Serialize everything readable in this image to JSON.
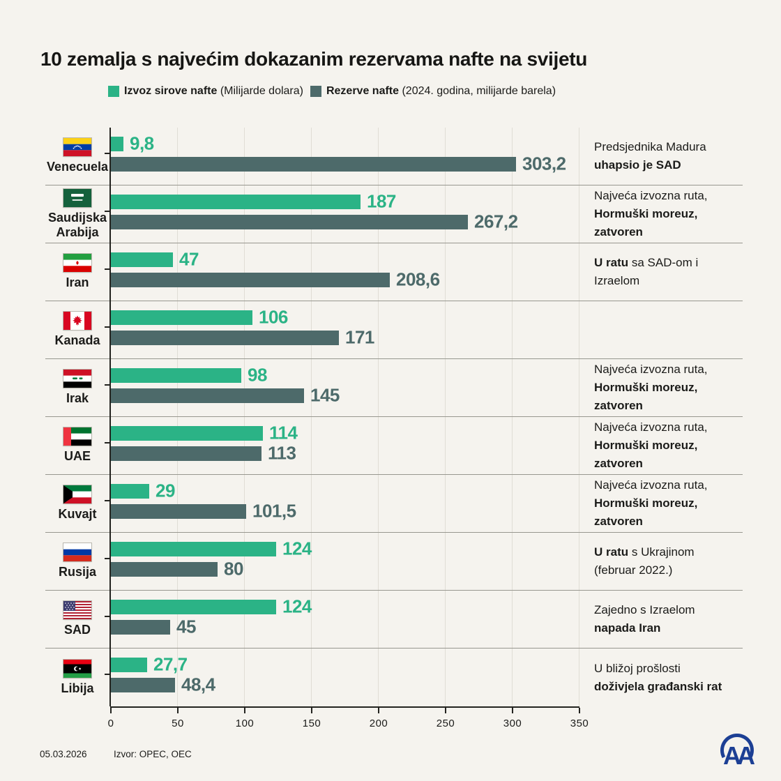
{
  "header": {
    "title": "10 zemalja s najvećim dokazanim rezervama nafte na svijetu"
  },
  "legend": {
    "items": [
      {
        "label_bold": "Izvoz sirove nafte",
        "label_rest": " (Milijarde dolara)",
        "color": "#2bb386"
      },
      {
        "label_bold": "Rezerve nafte",
        "label_rest": " (2024. godina, milijarde barela)",
        "color": "#4d6a6a"
      }
    ]
  },
  "chart_data": {
    "type": "bar",
    "orientation": "horizontal",
    "title": "10 zemalja s najvećim dokazanim rezervama nafte na svijetu",
    "categories": [
      "Venecuela",
      "Saudijska Arabija",
      "Iran",
      "Kanada",
      "Irak",
      "UAE",
      "Kuvajt",
      "Rusija",
      "SAD",
      "Libija"
    ],
    "series": [
      {
        "name": "Izvoz sirove nafte (Milijarde dolara)",
        "color": "#2bb386",
        "values": [
          9.8,
          187,
          47,
          106,
          98,
          114,
          29,
          124,
          124,
          27.7
        ],
        "labels": [
          "9,8",
          "187",
          "47",
          "106",
          "98",
          "114",
          "29",
          "124",
          "124",
          "27,7"
        ]
      },
      {
        "name": "Rezerve nafte (2024. godina, milijarde barela)",
        "color": "#4d6a6a",
        "values": [
          303.2,
          267.2,
          208.6,
          171,
          145,
          113,
          101.5,
          80,
          45,
          48.4
        ],
        "labels": [
          "303,2",
          "267,2",
          "208,6",
          "171",
          "145",
          "113",
          "101,5",
          "80",
          "45",
          "48,4"
        ]
      }
    ],
    "xlim": [
      0,
      350
    ],
    "x_ticks": [
      "0",
      "50",
      "100",
      "150",
      "200",
      "250",
      "300",
      "350"
    ],
    "grid": true,
    "legend_position": "top",
    "rows": [
      {
        "flag": "ve",
        "note": [
          [
            {
              "t": "Predsjednika Madura",
              "b": false
            }
          ],
          [
            {
              "t": "uhapsio je SAD",
              "b": true
            }
          ]
        ]
      },
      {
        "flag": "sa",
        "note": [
          [
            {
              "t": "Najveća izvozna ruta,",
              "b": false
            }
          ],
          [
            {
              "t": "Hormuški moreuz,",
              "b": true
            }
          ],
          [
            {
              "t": "zatvoren",
              "b": true
            }
          ]
        ]
      },
      {
        "flag": "ir",
        "note": [
          [
            {
              "t": "U ratu",
              "b": true
            },
            {
              "t": " sa SAD-om i",
              "b": false
            }
          ],
          [
            {
              "t": "Izraelom",
              "b": false
            }
          ]
        ]
      },
      {
        "flag": "ca",
        "note": []
      },
      {
        "flag": "iq",
        "note": [
          [
            {
              "t": "Najveća izvozna ruta,",
              "b": false
            }
          ],
          [
            {
              "t": "Hormuški moreuz,",
              "b": true
            }
          ],
          [
            {
              "t": "zatvoren",
              "b": true
            }
          ]
        ]
      },
      {
        "flag": "ae",
        "note": [
          [
            {
              "t": "Najveća izvozna ruta,",
              "b": false
            }
          ],
          [
            {
              "t": "Hormuški moreuz,",
              "b": true
            }
          ],
          [
            {
              "t": "zatvoren",
              "b": true
            }
          ]
        ]
      },
      {
        "flag": "kw",
        "note": [
          [
            {
              "t": "Najveća izvozna ruta,",
              "b": false
            }
          ],
          [
            {
              "t": "Hormuški moreuz,",
              "b": true
            }
          ],
          [
            {
              "t": "zatvoren",
              "b": true
            }
          ]
        ]
      },
      {
        "flag": "ru",
        "note": [
          [
            {
              "t": "U ratu",
              "b": true
            },
            {
              "t": " s Ukrajinom",
              "b": false
            }
          ],
          [
            {
              "t": "(februar 2022.)",
              "b": false
            }
          ]
        ]
      },
      {
        "flag": "us",
        "note": [
          [
            {
              "t": "Zajedno s Izraelom",
              "b": false
            }
          ],
          [
            {
              "t": "napada Iran",
              "b": true
            }
          ]
        ]
      },
      {
        "flag": "ly",
        "note": [
          [
            {
              "t": "U bližoj prošlosti",
              "b": false
            }
          ],
          [
            {
              "t": "doživjela građanski rat",
              "b": true
            }
          ]
        ]
      }
    ]
  },
  "footer": {
    "date": "05.03.2026",
    "source": "Izvor: OPEC, OEC",
    "logo": "AA"
  }
}
